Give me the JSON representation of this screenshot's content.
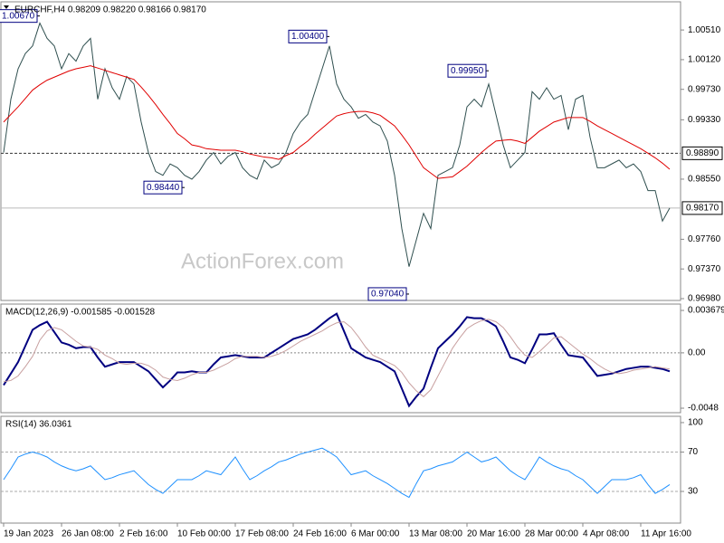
{
  "chart_data": [
    {
      "type": "line",
      "title": "EURCHF,H4  0.98209 0.98220 0.98166 0.98170",
      "watermark": "ActionForex.com",
      "ylim": [
        0.96956,
        1.0088
      ],
      "yticks": [
        {
          "value": 1.0051,
          "label": "1.00510"
        },
        {
          "value": 1.0012,
          "label": "1.00120"
        },
        {
          "value": 0.9973,
          "label": "0.99730"
        },
        {
          "value": 0.9933,
          "label": "0.99330"
        },
        {
          "value": 0.9855,
          "label": "0.98550"
        },
        {
          "value": 0.9776,
          "label": "0.97760"
        },
        {
          "value": 0.9737,
          "label": "0.97370"
        },
        {
          "value": 0.9698,
          "label": "0.96980"
        }
      ],
      "levels": [
        {
          "value": 0.9889,
          "label": "0.98890",
          "style": "dashed"
        },
        {
          "value": 0.9817,
          "label": "0.98170",
          "style": "solid"
        }
      ],
      "annotations": [
        {
          "x": 5,
          "value": 1.0067,
          "label": "1.00670"
        },
        {
          "x": 45,
          "value": 1.004,
          "label": "1.00400"
        },
        {
          "x": 67,
          "value": 0.9995,
          "label": "0.99950"
        },
        {
          "x": 25,
          "value": 0.9844,
          "label": "0.98440"
        },
        {
          "x": 56,
          "value": 0.9704,
          "label": "0.97040"
        }
      ],
      "series": [
        {
          "color": "#2f4f4f",
          "values": [
            0.989,
            0.996,
            1.0,
            1.002,
            1.003,
            1.006,
            1.004,
            1.003,
            1.0,
            1.002,
            1.001,
            1.003,
            1.004,
            0.996,
            1.0,
            0.9975,
            0.996,
            0.999,
            0.998,
            0.993,
            0.989,
            0.9865,
            0.986,
            0.9875,
            0.987,
            0.986,
            0.9855,
            0.9865,
            0.988,
            0.989,
            0.9875,
            0.9885,
            0.989,
            0.987,
            0.986,
            0.9855,
            0.988,
            0.987,
            0.9875,
            0.989,
            0.9915,
            0.993,
            0.994,
            0.997,
            1.0,
            1.003,
            0.998,
            0.996,
            0.995,
            0.9935,
            0.994,
            0.993,
            0.9925,
            0.9905,
            0.986,
            0.979,
            0.974,
            0.9775,
            0.981,
            0.979,
            0.986,
            0.9865,
            0.987,
            0.99,
            0.995,
            0.996,
            0.995,
            0.998,
            0.994,
            0.99,
            0.987,
            0.988,
            0.989,
            0.997,
            0.996,
            0.9975,
            0.996,
            0.9965,
            0.992,
            0.996,
            0.9965,
            0.991,
            0.987,
            0.987,
            0.9875,
            0.988,
            0.987,
            0.9875,
            0.9865,
            0.984,
            0.984,
            0.98,
            0.9817
          ]
        },
        {
          "color": "#e00000",
          "values": [
            0.993,
            0.994,
            0.995,
            0.9961,
            0.9972,
            0.9979,
            0.9985,
            0.9989,
            0.9993,
            0.9997,
            1.0,
            1.0002,
            1.0004,
            1.0001,
            0.9998,
            0.9995,
            0.9992,
            0.9989,
            0.9986,
            0.9976,
            0.9965,
            0.9953,
            0.994,
            0.9928,
            0.9915,
            0.9908,
            0.99,
            0.9898,
            0.9895,
            0.9894,
            0.9893,
            0.9893,
            0.9893,
            0.9891,
            0.9888,
            0.9886,
            0.9884,
            0.9883,
            0.9881,
            0.9886,
            0.989,
            0.9898,
            0.9905,
            0.9914,
            0.9922,
            0.993,
            0.9938,
            0.9941,
            0.9943,
            0.9944,
            0.9944,
            0.9942,
            0.9939,
            0.9932,
            0.9925,
            0.9913,
            0.99,
            0.9885,
            0.987,
            0.9863,
            0.9856,
            0.9857,
            0.9858,
            0.9865,
            0.9872,
            0.9881,
            0.989,
            0.9898,
            0.9905,
            0.9906,
            0.9907,
            0.9905,
            0.9902,
            0.991,
            0.9918,
            0.9924,
            0.993,
            0.9933,
            0.9936,
            0.9936,
            0.9936,
            0.9931,
            0.9925,
            0.992,
            0.9915,
            0.991,
            0.9905,
            0.99,
            0.9895,
            0.9889,
            0.9883,
            0.9876,
            0.9868
          ]
        }
      ]
    },
    {
      "type": "line",
      "title": "MACD(12,26,9) -0.001585 -0.001528",
      "ylim": [
        -0.00519,
        0.00423
      ],
      "yticks": [
        0.003679,
        {
          "value": 0,
          "label": "0.00"
        },
        -0.0048
      ],
      "series": [
        {
          "color": "#000080",
          "values": [
            -0.0028,
            -0.0018,
            -0.0008,
            0.0006,
            0.002,
            0.0024,
            0.0027,
            0.0018,
            0.0009,
            0.0007,
            0.0004,
            0.0005,
            0.0005,
            -0.0004,
            -0.0012,
            -0.001,
            -0.0008,
            -0.0008,
            -0.0008,
            -0.0012,
            -0.0016,
            -0.0023,
            -0.003,
            -0.0024,
            -0.0017,
            -0.0017,
            -0.0016,
            -0.0017,
            -0.0017,
            -0.001,
            -0.0004,
            -0.0003,
            -0.0002,
            -0.0003,
            -0.0004,
            -0.0004,
            -0.0004,
            0,
            0.0004,
            0.0008,
            0.0012,
            0.0014,
            0.0016,
            0.002,
            0.0025,
            0.003,
            0.0034,
            0.0019,
            0.0004,
            0,
            -0.0004,
            -0.0006,
            -0.0008,
            -0.0012,
            -0.0016,
            -0.0031,
            -0.0046,
            -0.0038,
            -0.0031,
            -0.0013,
            0.0004,
            0.001,
            0.0016,
            0.0023,
            0.0031,
            0.003,
            0.003,
            0.0027,
            0.0023,
            0.001,
            -0.0004,
            -0.0006,
            -0.0009,
            0.0003,
            0.0016,
            0.0016,
            0.0017,
            0.0007,
            -0.0002,
            -0.0003,
            -0.0004,
            -0.0012,
            -0.002,
            -0.0019,
            -0.0018,
            -0.0016,
            -0.0014,
            -0.0013,
            -0.0012,
            -0.0012,
            -0.0013,
            -0.0014,
            -0.0016
          ]
        },
        {
          "color": "#c8a0a0",
          "values": [
            -0.0025,
            -0.0024,
            -0.002,
            -0.0012,
            -0.0003,
            0.0011,
            0.0019,
            0.0022,
            0.002,
            0.0015,
            0.001,
            0.0006,
            0.0005,
            0.0003,
            -0.0002,
            -0.0005,
            -0.0009,
            -0.001,
            -0.0009,
            -0.0009,
            -0.0011,
            -0.0015,
            -0.0021,
            -0.0023,
            -0.0024,
            -0.0022,
            -0.0019,
            -0.0017,
            -0.0017,
            -0.0015,
            -0.0012,
            -0.0009,
            -0.0005,
            -0.0003,
            -0.0003,
            -0.0003,
            -0.0004,
            -0.0003,
            -0.0001,
            0.0002,
            0.0006,
            0.001,
            0.0013,
            0.0016,
            0.0019,
            0.0023,
            0.0026,
            0.0027,
            0.0022,
            0.0014,
            0.0005,
            -0.0002,
            -0.0005,
            -0.0008,
            -0.0011,
            -0.0017,
            -0.0026,
            -0.0033,
            -0.0038,
            -0.0032,
            -0.002,
            -0.0008,
            0.0004,
            0.0013,
            0.0021,
            0.0025,
            0.0028,
            0.0029,
            0.0027,
            0.0022,
            0.0014,
            0.0005,
            -0.0002,
            -0.0004,
            0.0001,
            0.0007,
            0.0013,
            0.0014,
            0.0009,
            0.0004,
            -0.0001,
            -0.0005,
            -0.001,
            -0.0014,
            -0.0017,
            -0.0018,
            -0.0017,
            -0.0015,
            -0.0014,
            -0.0013,
            -0.0012,
            -0.0013,
            -0.0014
          ]
        }
      ]
    },
    {
      "type": "line",
      "title": "RSI(14) 36.0361",
      "ylim": [
        -2.2,
        106.4
      ],
      "yticks": [
        100,
        70,
        30
      ],
      "levels": [
        {
          "value": 70,
          "style": "dashed"
        },
        {
          "value": 30,
          "style": "dashed"
        }
      ],
      "categories": [
        "19 Jan 2023",
        null,
        null,
        null,
        null,
        null,
        null,
        null,
        "26 Jan 08:00",
        null,
        null,
        null,
        null,
        null,
        null,
        null,
        "2 Feb 16:00",
        null,
        null,
        null,
        null,
        null,
        null,
        null,
        "10 Feb 00:00",
        null,
        null,
        null,
        null,
        null,
        null,
        null,
        "17 Feb 08:00",
        null,
        null,
        null,
        null,
        null,
        null,
        null,
        "24 Feb 16:00",
        null,
        null,
        null,
        null,
        null,
        null,
        null,
        "6 Mar 00:00",
        null,
        null,
        null,
        null,
        null,
        null,
        null,
        "13 Mar 08:00",
        null,
        null,
        null,
        null,
        null,
        null,
        null,
        "20 Mar 16:00",
        null,
        null,
        null,
        null,
        null,
        null,
        null,
        "28 Mar 00:00",
        null,
        null,
        null,
        null,
        null,
        null,
        null,
        "4 Apr 08:00",
        null,
        null,
        null,
        null,
        null,
        null,
        null,
        "11 Apr 16:00",
        null,
        null,
        null,
        null
      ],
      "series": [
        {
          "color": "#1e90ff",
          "values": [
            42,
            53,
            65,
            68,
            70,
            68,
            65,
            60,
            56,
            53,
            51,
            53,
            56,
            49,
            42,
            44,
            47,
            49,
            51,
            44,
            37,
            32,
            28,
            35,
            42,
            42,
            42,
            46,
            51,
            49,
            47,
            56,
            65,
            53,
            42,
            46,
            51,
            55,
            60,
            62,
            65,
            68,
            70,
            72,
            74,
            70,
            65,
            56,
            47,
            49,
            51,
            46,
            42,
            38,
            33,
            28,
            24,
            38,
            51,
            53,
            56,
            58,
            60,
            65,
            70,
            65,
            60,
            62,
            65,
            58,
            51,
            46,
            42,
            53,
            65,
            60,
            56,
            53,
            51,
            46,
            42,
            35,
            28,
            35,
            42,
            42,
            42,
            44,
            47,
            37,
            28,
            32,
            37
          ]
        }
      ]
    }
  ]
}
